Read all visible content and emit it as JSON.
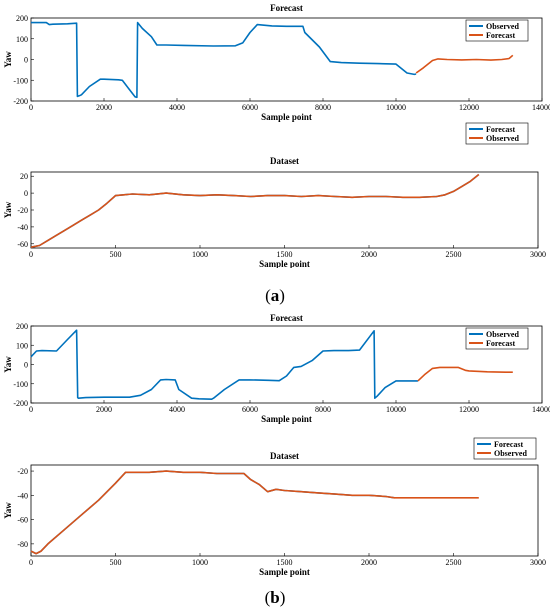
{
  "panel_labels": [
    {
      "open": "(",
      "letter": "a",
      "close": ")"
    },
    {
      "open": "(",
      "letter": "b",
      "close": ")"
    }
  ],
  "colors": {
    "blue": "#0072BD",
    "orange": "#D95319"
  },
  "chart_data": [
    {
      "type": "line",
      "title": "Forecast",
      "xlabel": "Sample point",
      "ylabel": "Yaw",
      "xlim": [
        0,
        14000
      ],
      "ylim": [
        -200,
        200
      ],
      "xticks": [
        0,
        2000,
        4000,
        6000,
        8000,
        10000,
        12000,
        14000
      ],
      "yticks": [
        -200,
        -100,
        0,
        100,
        200
      ],
      "legend_position": "top-right",
      "series": [
        {
          "name": "Observed",
          "color": "#0072BD",
          "x": [
            0,
            200,
            420,
            500,
            600,
            1000,
            1250,
            1270,
            1320,
            1380,
            1600,
            1900,
            2000,
            2400,
            2500,
            2850,
            2900,
            2920,
            3050,
            3300,
            3450,
            3700,
            4200,
            5000,
            5600,
            5800,
            6000,
            6200,
            6600,
            7000,
            7450,
            7500,
            7900,
            8200,
            8500,
            9000,
            9500,
            10000,
            10300,
            10500,
            10550
          ],
          "y": [
            178,
            178,
            178,
            168,
            170,
            172,
            175,
            -178,
            -175,
            -170,
            -130,
            -95,
            -95,
            -98,
            -100,
            -180,
            -182,
            178,
            150,
            110,
            70,
            70,
            68,
            65,
            66,
            80,
            130,
            168,
            162,
            160,
            160,
            130,
            60,
            -10,
            -15,
            -18,
            -20,
            -22,
            -65,
            -72,
            -70
          ]
        },
        {
          "name": "Forecast",
          "color": "#D95319",
          "x": [
            10550,
            10750,
            11000,
            11150,
            11400,
            11800,
            12200,
            12600,
            12900,
            13100,
            13200
          ],
          "y": [
            -65,
            -40,
            -5,
            3,
            0,
            -2,
            0,
            -3,
            0,
            5,
            20
          ]
        }
      ]
    },
    {
      "type": "line",
      "title": "Dataset",
      "xlabel": "Sample point",
      "ylabel": "Yaw",
      "xlim": [
        0,
        3000
      ],
      "ylim": [
        -65,
        25
      ],
      "xticks": [
        0,
        500,
        1000,
        1500,
        2000,
        2500,
        3000
      ],
      "yticks": [
        -60,
        -40,
        -20,
        0,
        20
      ],
      "legend_position": "top-right",
      "series": [
        {
          "name": "Forecast",
          "color": "#0072BD",
          "x": [
            0,
            50,
            100,
            150,
            200,
            250,
            300,
            350,
            400,
            450,
            500,
            550,
            600,
            700,
            800,
            900,
            1000,
            1100,
            1200,
            1300,
            1400,
            1500,
            1600,
            1700,
            1800,
            1900,
            2000,
            2100,
            2200,
            2300,
            2400,
            2450,
            2500,
            2550,
            2600,
            2650
          ],
          "y": [
            -64,
            -62,
            -56,
            -50,
            -44,
            -38,
            -32,
            -26,
            -20,
            -12,
            -3,
            -2,
            -1,
            -2,
            0,
            -2,
            -3,
            -2,
            -3,
            -4,
            -3,
            -3,
            -4,
            -3,
            -4,
            -5,
            -4,
            -4,
            -5,
            -5,
            -4,
            -2,
            2,
            8,
            14,
            22
          ]
        },
        {
          "name": "Observed",
          "color": "#D95319",
          "x": [
            0,
            50,
            100,
            150,
            200,
            250,
            300,
            350,
            400,
            450,
            500,
            550,
            600,
            700,
            800,
            900,
            1000,
            1100,
            1200,
            1300,
            1400,
            1500,
            1600,
            1700,
            1800,
            1900,
            2000,
            2100,
            2200,
            2300,
            2400,
            2450,
            2500,
            2550,
            2600,
            2650
          ],
          "y": [
            -64,
            -62,
            -56,
            -50,
            -44,
            -38,
            -32,
            -26,
            -20,
            -12,
            -3,
            -2,
            -1,
            -2,
            0,
            -2,
            -3,
            -2,
            -3,
            -4,
            -3,
            -3,
            -4,
            -3,
            -4,
            -5,
            -4,
            -4,
            -5,
            -5,
            -4,
            -2,
            2,
            8,
            14,
            22
          ]
        }
      ]
    },
    {
      "type": "line",
      "title": "Forecast",
      "xlabel": "Sample point",
      "ylabel": "Yaw",
      "xlim": [
        0,
        14000
      ],
      "ylim": [
        -200,
        200
      ],
      "xticks": [
        0,
        2000,
        4000,
        6000,
        8000,
        10000,
        12000,
        14000
      ],
      "yticks": [
        -200,
        -100,
        0,
        100,
        200
      ],
      "legend_position": "top-right",
      "series": [
        {
          "name": "Observed",
          "color": "#0072BD",
          "x": [
            0,
            150,
            300,
            700,
            1000,
            1250,
            1280,
            1300,
            1500,
            2000,
            2700,
            3000,
            3300,
            3550,
            3700,
            3950,
            4050,
            4400,
            4600,
            4950,
            5000,
            5300,
            5700,
            6000,
            6500,
            6800,
            7000,
            7200,
            7400,
            7700,
            8000,
            8300,
            8700,
            9000,
            9400,
            9420,
            9480,
            9700,
            10000,
            10400,
            10600
          ],
          "y": [
            40,
            70,
            72,
            70,
            130,
            178,
            -172,
            -175,
            -172,
            -170,
            -170,
            -160,
            -130,
            -80,
            -78,
            -80,
            -130,
            -175,
            -178,
            -180,
            -175,
            -130,
            -80,
            -80,
            -82,
            -84,
            -60,
            -15,
            -10,
            20,
            70,
            72,
            72,
            75,
            175,
            -175,
            -165,
            -120,
            -85,
            -85,
            -85
          ]
        },
        {
          "name": "Forecast",
          "color": "#D95319",
          "x": [
            10600,
            10800,
            11000,
            11200,
            11700,
            11900,
            12000,
            12500,
            13000,
            13200
          ],
          "y": [
            -85,
            -50,
            -20,
            -15,
            -15,
            -30,
            -33,
            -38,
            -40,
            -40
          ]
        }
      ]
    },
    {
      "type": "line",
      "title": "Dataset",
      "xlabel": "Sample point",
      "ylabel": "Yaw",
      "xlim": [
        0,
        3000
      ],
      "ylim": [
        -90,
        -15
      ],
      "xticks": [
        0,
        500,
        1000,
        1500,
        2000,
        2500,
        3000
      ],
      "yticks": [
        -80,
        -60,
        -40,
        -20
      ],
      "legend_position": "top-right",
      "series": [
        {
          "name": "Forecast",
          "color": "#0072BD",
          "x": [
            0,
            30,
            60,
            100,
            200,
            300,
            400,
            500,
            560,
            600,
            700,
            800,
            900,
            1000,
            1100,
            1200,
            1260,
            1300,
            1350,
            1400,
            1450,
            1500,
            1600,
            1700,
            1800,
            1900,
            2000,
            2100,
            2150
          ],
          "y": [
            -86,
            -88,
            -86,
            -80,
            -68,
            -56,
            -44,
            -30,
            -21,
            -21,
            -21,
            -20,
            -21,
            -21,
            -22,
            -22,
            -22,
            -27,
            -31,
            -37,
            -35,
            -36,
            -37,
            -38,
            -39,
            -40,
            -40,
            -41,
            -42
          ]
        },
        {
          "name": "Observed",
          "color": "#D95319",
          "x": [
            0,
            30,
            60,
            100,
            200,
            300,
            400,
            500,
            560,
            600,
            700,
            800,
            900,
            1000,
            1100,
            1200,
            1260,
            1300,
            1350,
            1400,
            1450,
            1500,
            1600,
            1700,
            1800,
            1900,
            2000,
            2100,
            2150,
            2300,
            2500,
            2650
          ],
          "y": [
            -86,
            -88,
            -86,
            -80,
            -68,
            -56,
            -44,
            -30,
            -21,
            -21,
            -21,
            -20,
            -21,
            -21,
            -22,
            -22,
            -22,
            -27,
            -31,
            -37,
            -35,
            -36,
            -37,
            -38,
            -39,
            -40,
            -40,
            -41,
            -42,
            -42,
            -42,
            -42
          ]
        }
      ]
    }
  ]
}
